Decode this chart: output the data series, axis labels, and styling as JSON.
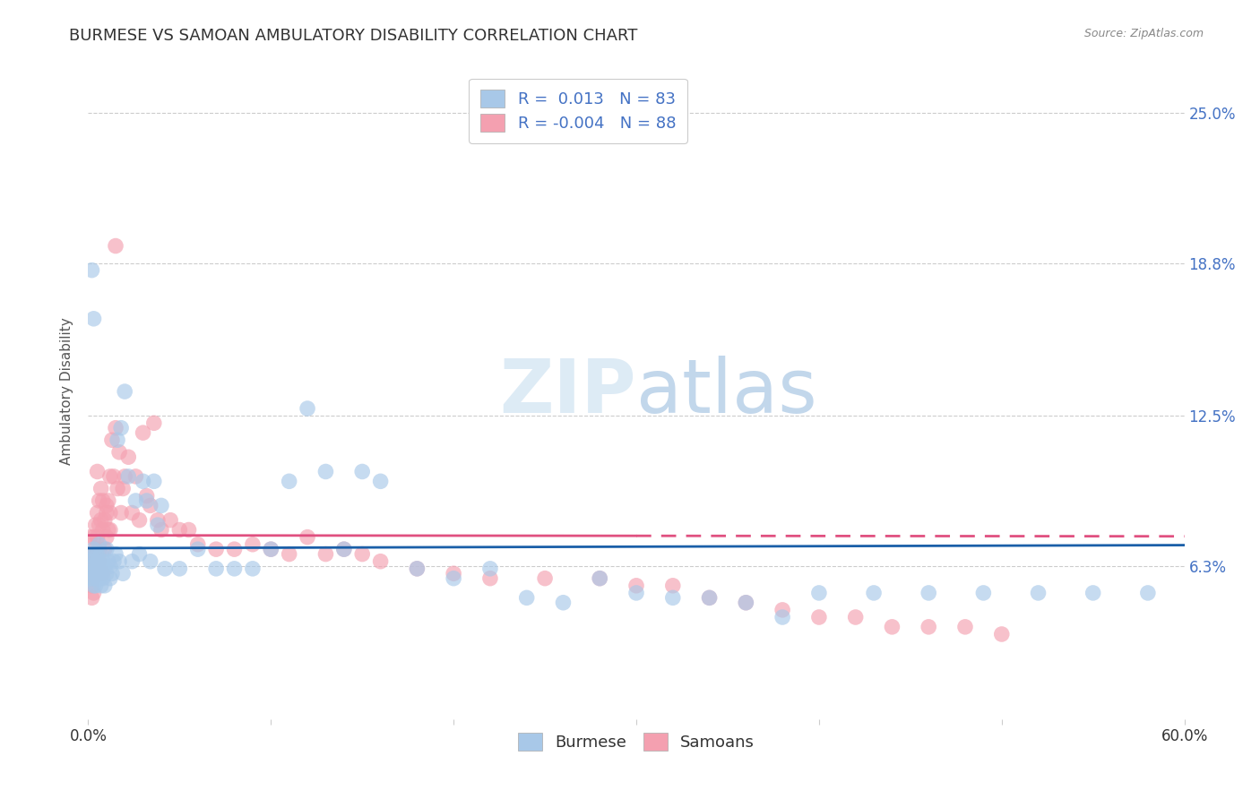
{
  "title": "BURMESE VS SAMOAN AMBULATORY DISABILITY CORRELATION CHART",
  "source": "Source: ZipAtlas.com",
  "ylabel": "Ambulatory Disability",
  "xlim": [
    0.0,
    0.6
  ],
  "ylim": [
    0.0,
    0.27
  ],
  "xtick_values": [
    0.0,
    0.1,
    0.2,
    0.3,
    0.4,
    0.5,
    0.6
  ],
  "xtick_labels_ends": [
    "0.0%",
    "60.0%"
  ],
  "ytick_labels": [
    "6.3%",
    "12.5%",
    "18.8%",
    "25.0%"
  ],
  "ytick_values": [
    0.063,
    0.125,
    0.188,
    0.25
  ],
  "burmese_R": "0.013",
  "burmese_N": "83",
  "samoans_R": "-0.004",
  "samoans_N": "88",
  "burmese_color": "#a8c8e8",
  "samoans_color": "#f4a0b0",
  "burmese_line_color": "#1a5fa8",
  "samoans_line_color": "#e05080",
  "background_color": "#ffffff",
  "title_fontsize": 13,
  "axis_label_fontsize": 11,
  "tick_fontsize": 12,
  "legend_fontsize": 13,
  "burmese_line_y": 0.063,
  "samoans_line_y_start": 0.076,
  "samoans_line_y_end": 0.073,
  "burmese_x": [
    0.001,
    0.001,
    0.001,
    0.002,
    0.002,
    0.002,
    0.003,
    0.003,
    0.003,
    0.003,
    0.004,
    0.004,
    0.004,
    0.005,
    0.005,
    0.005,
    0.006,
    0.006,
    0.006,
    0.007,
    0.007,
    0.007,
    0.008,
    0.008,
    0.009,
    0.009,
    0.01,
    0.01,
    0.011,
    0.012,
    0.012,
    0.013,
    0.014,
    0.015,
    0.016,
    0.017,
    0.018,
    0.019,
    0.02,
    0.022,
    0.024,
    0.026,
    0.028,
    0.03,
    0.032,
    0.034,
    0.036,
    0.038,
    0.04,
    0.042,
    0.05,
    0.06,
    0.07,
    0.08,
    0.09,
    0.1,
    0.11,
    0.12,
    0.13,
    0.14,
    0.15,
    0.16,
    0.18,
    0.2,
    0.22,
    0.24,
    0.26,
    0.28,
    0.3,
    0.32,
    0.34,
    0.36,
    0.38,
    0.4,
    0.43,
    0.46,
    0.49,
    0.52,
    0.55,
    0.58,
    0.002,
    0.003,
    0.005
  ],
  "burmese_y": [
    0.065,
    0.068,
    0.058,
    0.063,
    0.06,
    0.058,
    0.07,
    0.065,
    0.055,
    0.06,
    0.068,
    0.062,
    0.055,
    0.065,
    0.06,
    0.058,
    0.072,
    0.063,
    0.058,
    0.068,
    0.06,
    0.055,
    0.065,
    0.058,
    0.063,
    0.055,
    0.07,
    0.06,
    0.065,
    0.058,
    0.063,
    0.06,
    0.065,
    0.068,
    0.115,
    0.065,
    0.12,
    0.06,
    0.135,
    0.1,
    0.065,
    0.09,
    0.068,
    0.098,
    0.09,
    0.065,
    0.098,
    0.08,
    0.088,
    0.062,
    0.062,
    0.07,
    0.062,
    0.062,
    0.062,
    0.07,
    0.098,
    0.128,
    0.102,
    0.07,
    0.102,
    0.098,
    0.062,
    0.058,
    0.062,
    0.05,
    0.048,
    0.058,
    0.052,
    0.05,
    0.05,
    0.048,
    0.042,
    0.052,
    0.052,
    0.052,
    0.052,
    0.052,
    0.052,
    0.052,
    0.185,
    0.165,
    0.068
  ],
  "samoans_x": [
    0.001,
    0.001,
    0.001,
    0.002,
    0.002,
    0.002,
    0.002,
    0.003,
    0.003,
    0.003,
    0.003,
    0.004,
    0.004,
    0.004,
    0.005,
    0.005,
    0.005,
    0.006,
    0.006,
    0.006,
    0.007,
    0.007,
    0.008,
    0.008,
    0.009,
    0.009,
    0.01,
    0.01,
    0.011,
    0.011,
    0.012,
    0.012,
    0.013,
    0.014,
    0.015,
    0.016,
    0.017,
    0.018,
    0.019,
    0.02,
    0.022,
    0.024,
    0.026,
    0.028,
    0.03,
    0.032,
    0.034,
    0.036,
    0.038,
    0.04,
    0.045,
    0.05,
    0.055,
    0.06,
    0.07,
    0.08,
    0.09,
    0.1,
    0.11,
    0.12,
    0.13,
    0.14,
    0.15,
    0.16,
    0.18,
    0.2,
    0.22,
    0.25,
    0.28,
    0.3,
    0.32,
    0.34,
    0.36,
    0.38,
    0.4,
    0.42,
    0.44,
    0.46,
    0.48,
    0.5,
    0.003,
    0.004,
    0.005,
    0.006,
    0.008,
    0.01,
    0.012,
    0.015
  ],
  "samoans_y": [
    0.075,
    0.068,
    0.06,
    0.068,
    0.06,
    0.055,
    0.05,
    0.075,
    0.065,
    0.058,
    0.052,
    0.08,
    0.07,
    0.062,
    0.085,
    0.075,
    0.068,
    0.09,
    0.08,
    0.07,
    0.095,
    0.082,
    0.09,
    0.078,
    0.082,
    0.07,
    0.085,
    0.075,
    0.09,
    0.078,
    0.1,
    0.085,
    0.115,
    0.1,
    0.12,
    0.095,
    0.11,
    0.085,
    0.095,
    0.1,
    0.108,
    0.085,
    0.1,
    0.082,
    0.118,
    0.092,
    0.088,
    0.122,
    0.082,
    0.078,
    0.082,
    0.078,
    0.078,
    0.072,
    0.07,
    0.07,
    0.072,
    0.07,
    0.068,
    0.075,
    0.068,
    0.07,
    0.068,
    0.065,
    0.062,
    0.06,
    0.058,
    0.058,
    0.058,
    0.055,
    0.055,
    0.05,
    0.048,
    0.045,
    0.042,
    0.042,
    0.038,
    0.038,
    0.038,
    0.035,
    0.068,
    0.065,
    0.102,
    0.065,
    0.06,
    0.088,
    0.078,
    0.195
  ]
}
